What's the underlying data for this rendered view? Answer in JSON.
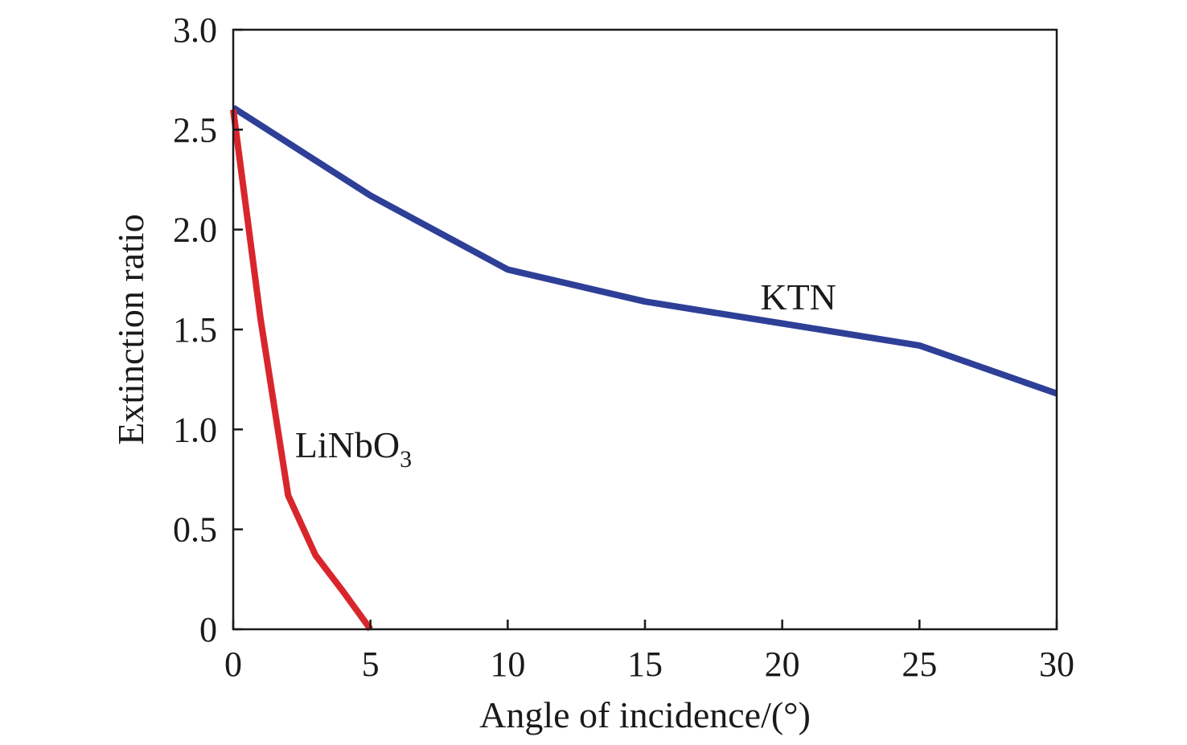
{
  "chart_data": {
    "type": "line",
    "title": "",
    "xlabel": "Angle of incidence/(°)",
    "ylabel": "Extinction ratio",
    "xlim": [
      0,
      30
    ],
    "ylim": [
      0,
      3.0
    ],
    "xticks": [
      0,
      5,
      10,
      15,
      20,
      25,
      30
    ],
    "xtick_labels": [
      "0",
      "5",
      "10",
      "15",
      "20",
      "25",
      "30"
    ],
    "yticks": [
      0,
      0.5,
      1.0,
      1.5,
      2.0,
      2.5,
      3.0
    ],
    "ytick_labels": [
      "0",
      "0.5",
      "1.0",
      "1.5",
      "2.0",
      "2.5",
      "3.0"
    ],
    "grid": false,
    "legend": "none",
    "series": [
      {
        "name": "KTN",
        "label_main": "KTN",
        "label_sub": "",
        "color": "#2e3f97",
        "x": [
          0,
          5,
          10,
          15,
          20,
          25,
          30
        ],
        "y": [
          2.61,
          2.17,
          1.8,
          1.64,
          1.53,
          1.42,
          1.18
        ]
      },
      {
        "name": "LiNbO3",
        "label_main": "LiNbO",
        "label_sub": "3",
        "color": "#d9262c",
        "x": [
          0,
          1,
          2,
          3,
          4,
          5
        ],
        "y": [
          2.6,
          1.55,
          0.67,
          0.37,
          0.19,
          0.0
        ]
      }
    ]
  }
}
